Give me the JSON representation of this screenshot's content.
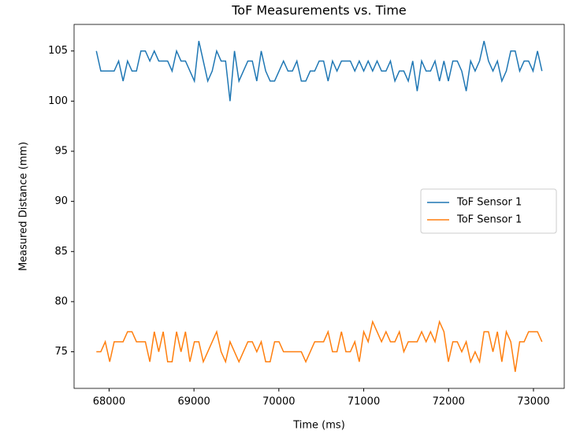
{
  "chart_data": {
    "type": "line",
    "title": "ToF Measurements vs. Time",
    "x_label": "Time (ms)",
    "y_label": "Measured Distance (mm)",
    "x": [
      67850,
      67902.5,
      67955,
      68007.5,
      68060,
      68112.5,
      68165,
      68217.5,
      68270,
      68322.5,
      68375,
      68427.5,
      68480,
      68532.5,
      68585,
      68637.5,
      68690,
      68742.5,
      68795,
      68847.5,
      68900,
      68952.5,
      69005,
      69057.5,
      69110,
      69162.5,
      69215,
      69267.5,
      69320,
      69372.5,
      69425,
      69477.5,
      69530,
      69582.5,
      69635,
      69687.5,
      69740,
      69792.5,
      69845,
      69897.5,
      69950,
      70002.5,
      70055,
      70107.5,
      70160,
      70212.5,
      70265,
      70317.5,
      70370,
      70422.5,
      70475,
      70527.5,
      70580,
      70632.5,
      70685,
      70737.5,
      70790,
      70842.5,
      70895,
      70947.5,
      71000,
      71052.5,
      71105,
      71157.5,
      71210,
      71262.5,
      71315,
      71367.5,
      71420,
      71472.5,
      71525,
      71577.5,
      71630,
      71682.5,
      71735,
      71787.5,
      71840,
      71892.5,
      71945,
      71997.5,
      72050,
      72102.5,
      72155,
      72207.5,
      72260,
      72312.5,
      72365,
      72417.5,
      72470,
      72522.5,
      72575,
      72627.5,
      72680,
      72732.5,
      72785,
      72837.5,
      72890,
      72942.5,
      72995,
      73047.5,
      73100
    ],
    "series": [
      {
        "name": "ToF Sensor 1",
        "color": "#1f77b4",
        "values": [
          105,
          103,
          103,
          103,
          103,
          104,
          102,
          104,
          103,
          103,
          105,
          105,
          104,
          105,
          104,
          104,
          104,
          103,
          105,
          104,
          104,
          103,
          102,
          106,
          104,
          102,
          103,
          105,
          104,
          104,
          100,
          105,
          102,
          103,
          104,
          104,
          102,
          105,
          103,
          102,
          102,
          103,
          104,
          103,
          103,
          104,
          102,
          102,
          103,
          103,
          104,
          104,
          102,
          104,
          103,
          104,
          104,
          104,
          103,
          104,
          103,
          104,
          103,
          104,
          103,
          103,
          104,
          102,
          103,
          103,
          102,
          104,
          101,
          104,
          103,
          103,
          104,
          102,
          104,
          102,
          104,
          104,
          103,
          101,
          104,
          103,
          104,
          106,
          104,
          103,
          104,
          102,
          103,
          105,
          105,
          103,
          104,
          104,
          103,
          105,
          103
        ]
      },
      {
        "name": "ToF Sensor 1",
        "color": "#ff7f0e",
        "values": [
          75,
          75,
          76,
          74,
          76,
          76,
          76,
          77,
          77,
          76,
          76,
          76,
          74,
          77,
          75,
          77,
          74,
          74,
          77,
          75,
          77,
          74,
          76,
          76,
          74,
          75,
          76,
          77,
          75,
          74,
          76,
          75,
          74,
          75,
          76,
          76,
          75,
          76,
          74,
          74,
          76,
          76,
          75,
          75,
          75,
          75,
          75,
          74,
          75,
          76,
          76,
          76,
          77,
          75,
          75,
          77,
          75,
          75,
          76,
          74,
          77,
          76,
          78,
          77,
          76,
          77,
          76,
          76,
          77,
          75,
          76,
          76,
          76,
          77,
          76,
          77,
          76,
          78,
          77,
          74,
          76,
          76,
          75,
          76,
          74,
          75,
          74,
          77,
          77,
          75,
          77,
          74,
          77,
          76,
          73,
          76,
          76,
          77,
          77,
          77,
          76
        ]
      }
    ],
    "xlim": [
      67587.5,
      73362.5
    ],
    "xticks": [
      68000,
      69000,
      70000,
      71000,
      72000,
      73000
    ],
    "ylim": [
      71.35,
      107.65
    ],
    "yticks": [
      75,
      80,
      85,
      90,
      95,
      100,
      105
    ],
    "legend": "center right"
  }
}
